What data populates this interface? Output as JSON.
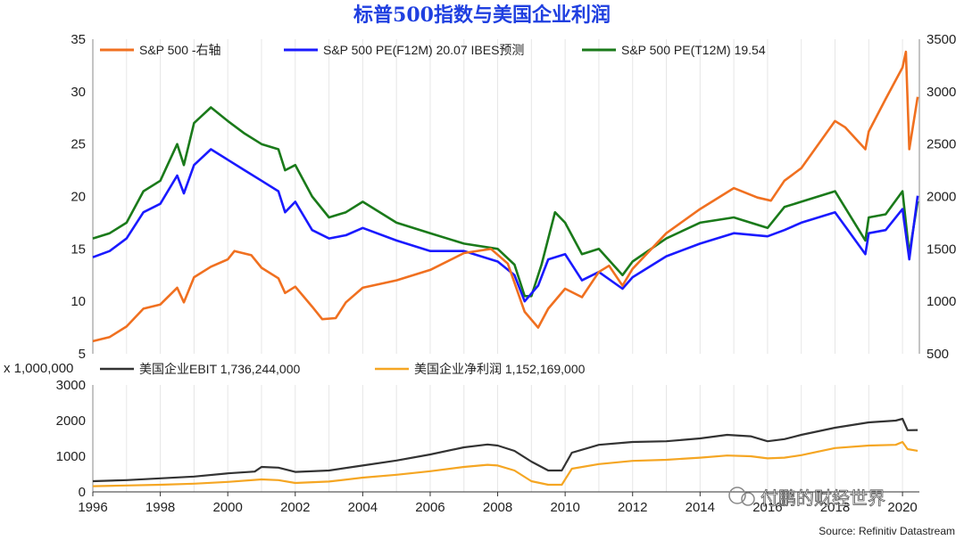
{
  "title": "标普500指数与美国企业利润",
  "source": "Source: Refinitiv Datastream",
  "watermark": "付鹏的财经世界",
  "colors": {
    "sp500": "#f07020",
    "pe_f12m": "#1a1aff",
    "pe_t12m": "#1a7a1a",
    "ebit": "#333333",
    "net": "#f5a623",
    "grid": "#e6e6e6"
  },
  "chart_data": [
    {
      "type": "line",
      "title": "标普500指数与美国企业利润",
      "x_range": [
        1996,
        2020.5
      ],
      "y_left": {
        "range": [
          5,
          35
        ],
        "ticks": [
          "5",
          "10",
          "15",
          "20",
          "25",
          "30",
          "35"
        ]
      },
      "y_right": {
        "range": [
          500,
          3500
        ],
        "ticks": [
          "500",
          "1000",
          "1500",
          "2000",
          "2500",
          "3000",
          "3500"
        ]
      },
      "legend_placement": "top",
      "grid": "vertical",
      "series": [
        {
          "name": "S&P 500 -右轴",
          "axis": "right",
          "color": "#f07020",
          "x": [
            1996.0,
            1996.5,
            1997.0,
            1997.5,
            1998.0,
            1998.5,
            1998.7,
            1999.0,
            1999.5,
            2000.0,
            2000.2,
            2000.7,
            2001.0,
            2001.5,
            2001.7,
            2002.0,
            2002.5,
            2002.8,
            2003.2,
            2003.5,
            2004.0,
            2005.0,
            2006.0,
            2007.0,
            2007.8,
            2008.3,
            2008.8,
            2009.2,
            2009.5,
            2010.0,
            2010.5,
            2011.0,
            2011.3,
            2011.7,
            2012.0,
            2013.0,
            2014.0,
            2015.0,
            2015.7,
            2016.1,
            2016.5,
            2017.0,
            2018.0,
            2018.3,
            2018.9,
            2019.0,
            2019.5,
            2020.0,
            2020.1,
            2020.2,
            2020.45
          ],
          "values": [
            620,
            660,
            760,
            930,
            970,
            1130,
            990,
            1230,
            1330,
            1400,
            1480,
            1440,
            1320,
            1220,
            1080,
            1140,
            950,
            830,
            840,
            990,
            1130,
            1200,
            1300,
            1460,
            1500,
            1360,
            900,
            750,
            930,
            1120,
            1040,
            1280,
            1340,
            1150,
            1310,
            1650,
            1880,
            2080,
            1990,
            1960,
            2150,
            2270,
            2720,
            2660,
            2450,
            2620,
            2930,
            3230,
            3380,
            2450,
            2950
          ]
        },
        {
          "name": "S&P 500 PE(F12M) 20.07 IBES预测",
          "axis": "left",
          "color": "#1a1aff",
          "value_label": "20.07",
          "x": [
            1996.0,
            1996.5,
            1997.0,
            1997.5,
            1998.0,
            1998.5,
            1998.7,
            1999.0,
            1999.5,
            2000.0,
            2000.5,
            2001.0,
            2001.5,
            2001.7,
            2002.0,
            2002.5,
            2003.0,
            2003.5,
            2004.0,
            2005.0,
            2006.0,
            2007.0,
            2008.0,
            2008.5,
            2008.8,
            2009.2,
            2009.5,
            2010.0,
            2010.5,
            2011.0,
            2011.7,
            2012.0,
            2013.0,
            2014.0,
            2015.0,
            2016.0,
            2016.5,
            2017.0,
            2018.0,
            2018.9,
            2019.0,
            2019.5,
            2020.0,
            2020.2,
            2020.45
          ],
          "values": [
            14.2,
            14.8,
            16.0,
            18.5,
            19.3,
            22.0,
            20.3,
            23.0,
            24.5,
            23.5,
            22.5,
            21.5,
            20.5,
            18.5,
            19.5,
            16.8,
            16.0,
            16.3,
            17.0,
            15.8,
            14.8,
            14.8,
            13.8,
            12.5,
            10.0,
            11.5,
            14.0,
            14.5,
            12.0,
            12.8,
            11.2,
            12.3,
            14.3,
            15.5,
            16.5,
            16.2,
            16.8,
            17.5,
            18.5,
            14.5,
            16.5,
            16.8,
            18.8,
            14.0,
            20.07
          ]
        },
        {
          "name": "S&P 500 PE(T12M) 19.54",
          "axis": "left",
          "color": "#1a7a1a",
          "value_label": "19.54",
          "x": [
            1996.0,
            1996.5,
            1997.0,
            1997.5,
            1998.0,
            1998.5,
            1998.7,
            1999.0,
            1999.5,
            2000.0,
            2000.5,
            2001.0,
            2001.5,
            2001.7,
            2002.0,
            2002.5,
            2003.0,
            2003.5,
            2004.0,
            2005.0,
            2006.0,
            2007.0,
            2008.0,
            2008.5,
            2008.8,
            2009.0,
            2009.3,
            2009.7,
            2010.0,
            2010.5,
            2011.0,
            2011.7,
            2012.0,
            2013.0,
            2014.0,
            2015.0,
            2016.0,
            2016.5,
            2017.0,
            2018.0,
            2018.9,
            2019.0,
            2019.5,
            2020.0,
            2020.2,
            2020.45
          ],
          "values": [
            16.0,
            16.5,
            17.5,
            20.5,
            21.5,
            25.0,
            23.0,
            27.0,
            28.5,
            27.2,
            26.0,
            25.0,
            24.5,
            22.5,
            23.0,
            20.0,
            18.0,
            18.5,
            19.5,
            17.5,
            16.5,
            15.5,
            15.0,
            13.5,
            10.5,
            10.5,
            13.5,
            18.5,
            17.5,
            14.5,
            15.0,
            12.5,
            13.8,
            16.0,
            17.5,
            18.0,
            17.0,
            19.0,
            19.5,
            20.5,
            15.8,
            18.0,
            18.3,
            20.5,
            14.5,
            19.54
          ]
        }
      ]
    },
    {
      "type": "line",
      "ylabel": "x 1,000,000",
      "x_range": [
        1996,
        2020.5
      ],
      "ylim": [
        0,
        3000
      ],
      "y_ticks": [
        "0",
        "1000",
        "2000",
        "3000"
      ],
      "x_ticks": [
        "1996",
        "1998",
        "2000",
        "2002",
        "2004",
        "2006",
        "2008",
        "2010",
        "2012",
        "2014",
        "2016",
        "2018",
        "2020"
      ],
      "legend_placement": "top",
      "grid": "vertical",
      "series": [
        {
          "name": "美国企业EBIT 1,736,244,000",
          "color": "#333333",
          "value_label": "1,736,244,000",
          "x": [
            1996.0,
            1997.0,
            1998.0,
            1999.0,
            2000.0,
            2000.8,
            2001.0,
            2001.5,
            2002.0,
            2003.0,
            2004.0,
            2005.0,
            2006.0,
            2007.0,
            2007.7,
            2008.0,
            2008.5,
            2009.0,
            2009.5,
            2009.9,
            2010.2,
            2011.0,
            2012.0,
            2013.0,
            2014.0,
            2014.8,
            2015.5,
            2016.0,
            2016.5,
            2017.0,
            2018.0,
            2019.0,
            2019.8,
            2020.0,
            2020.15,
            2020.45
          ],
          "values": [
            300,
            330,
            380,
            430,
            520,
            570,
            700,
            680,
            560,
            600,
            740,
            880,
            1050,
            1250,
            1330,
            1300,
            1150,
            850,
            600,
            600,
            1100,
            1320,
            1400,
            1420,
            1500,
            1600,
            1560,
            1420,
            1480,
            1600,
            1800,
            1950,
            2000,
            2050,
            1730,
            1736
          ]
        },
        {
          "name": "美国企业净利润 1,152,169,000",
          "color": "#f5a623",
          "value_label": "1,152,169,000",
          "x": [
            1996.0,
            1997.0,
            1998.0,
            1999.0,
            2000.0,
            2001.0,
            2001.5,
            2002.0,
            2003.0,
            2004.0,
            2005.0,
            2006.0,
            2007.0,
            2007.7,
            2008.0,
            2008.5,
            2009.0,
            2009.5,
            2009.9,
            2010.2,
            2011.0,
            2012.0,
            2013.0,
            2014.0,
            2014.8,
            2015.5,
            2016.0,
            2016.5,
            2017.0,
            2018.0,
            2019.0,
            2019.8,
            2020.0,
            2020.15,
            2020.45
          ],
          "values": [
            160,
            180,
            200,
            230,
            280,
            350,
            330,
            250,
            290,
            400,
            480,
            580,
            700,
            760,
            740,
            600,
            300,
            200,
            200,
            650,
            780,
            870,
            900,
            960,
            1020,
            1000,
            940,
            960,
            1030,
            1230,
            1300,
            1320,
            1400,
            1200,
            1152
          ]
        }
      ]
    }
  ]
}
